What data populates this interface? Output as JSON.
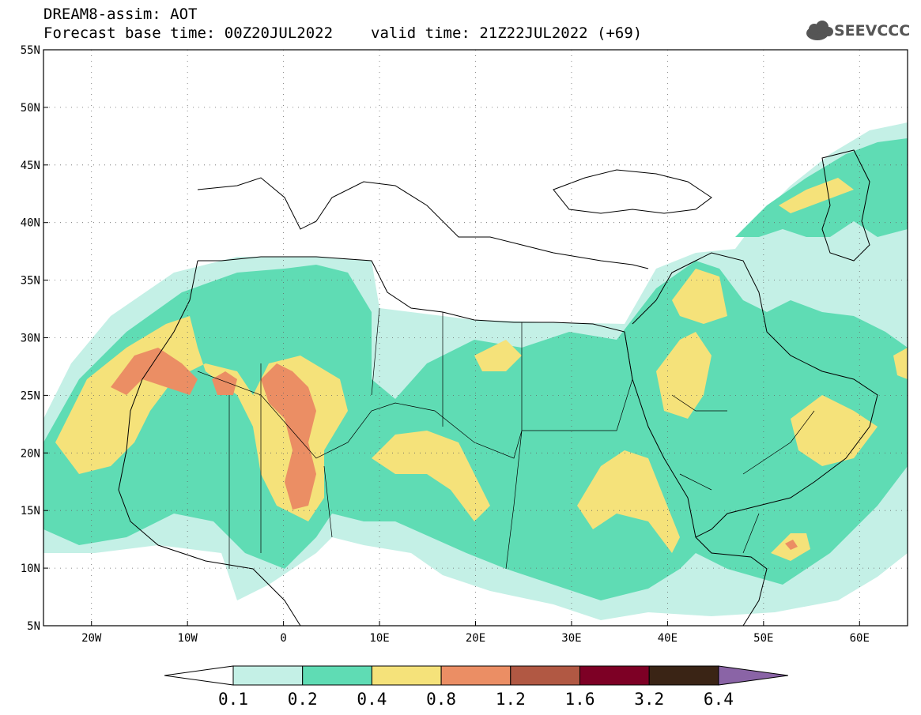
{
  "header": {
    "line1": "DREAM8-assim: AOT",
    "base_time": "Forecast base time: 00Z20JUL2022",
    "valid_time": "valid time: 21Z22JUL2022 (+69)"
  },
  "logo": {
    "text": "SEEVCCC",
    "icon": "cloud-icon"
  },
  "map": {
    "projection": "lat-lon",
    "lon_range": [
      -25,
      65
    ],
    "lat_range": [
      5,
      55
    ],
    "lon_ticks": [
      {
        "v": -20,
        "label": "20W"
      },
      {
        "v": -10,
        "label": "10W"
      },
      {
        "v": 0,
        "label": "0"
      },
      {
        "v": 10,
        "label": "10E"
      },
      {
        "v": 20,
        "label": "20E"
      },
      {
        "v": 30,
        "label": "30E"
      },
      {
        "v": 40,
        "label": "40E"
      },
      {
        "v": 50,
        "label": "50E"
      },
      {
        "v": 60,
        "label": "60E"
      }
    ],
    "lat_ticks": [
      {
        "v": 5,
        "label": "5N"
      },
      {
        "v": 10,
        "label": "10N"
      },
      {
        "v": 15,
        "label": "15N"
      },
      {
        "v": 20,
        "label": "20N"
      },
      {
        "v": 25,
        "label": "25N"
      },
      {
        "v": 30,
        "label": "30N"
      },
      {
        "v": 35,
        "label": "35N"
      },
      {
        "v": 40,
        "label": "40N"
      },
      {
        "v": 45,
        "label": "45N"
      },
      {
        "v": 50,
        "label": "50N"
      },
      {
        "v": 55,
        "label": "55N"
      }
    ],
    "grid": "dotted"
  },
  "colorbar": {
    "levels": [
      "0.1",
      "0.2",
      "0.4",
      "0.8",
      "1.2",
      "1.6",
      "3.2",
      "6.4"
    ],
    "colors": [
      "#c4f0e6",
      "#5fdcb4",
      "#f5e27a",
      "#eb8e64",
      "#b15843",
      "#7d0025",
      "#3a2415"
    ],
    "below_color": "#ffffff",
    "above_color": "#8a64a6"
  },
  "aot_colors": {
    "c1": "#c4f0e6",
    "c2": "#5fdcb4",
    "c3": "#f5e27a",
    "c4": "#eb8e64",
    "c5": "#b15843"
  }
}
